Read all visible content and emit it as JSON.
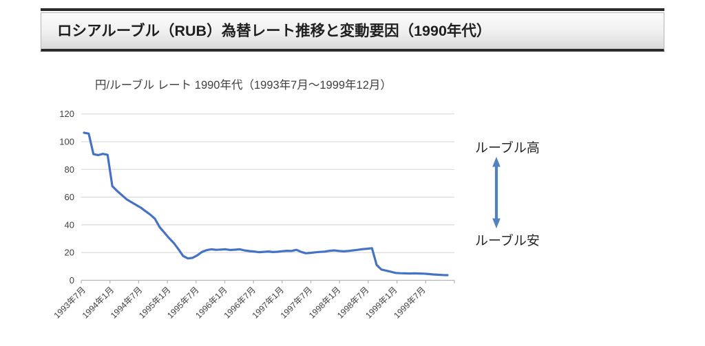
{
  "header": {
    "title": "ロシアルーブル（RUB）為替レート推移と変動要因（1990年代）"
  },
  "chart_data": {
    "type": "line",
    "title": "円/ルーブル レート 1990年代（1993年7月～1999年12月）",
    "series": [
      {
        "name": "円/ルーブル レート",
        "frequency": "monthly",
        "x_start": "1993年7月",
        "x_end": "1999年12月",
        "values": [
          106.5,
          105.8,
          91.0,
          90.3,
          91.2,
          90.5,
          68.0,
          64.5,
          61.5,
          58.5,
          56.5,
          54.5,
          52.5,
          50.0,
          47.5,
          44.5,
          38.5,
          34.5,
          30.5,
          27.0,
          22.5,
          17.5,
          15.8,
          16.2,
          18.0,
          20.5,
          21.8,
          22.4,
          22.0,
          22.2,
          22.4,
          21.9,
          22.1,
          22.4,
          21.6,
          21.1,
          20.8,
          20.3,
          20.5,
          20.8,
          20.4,
          20.6,
          21.0,
          21.3,
          21.2,
          22.0,
          20.5,
          19.5,
          19.8,
          20.2,
          20.5,
          20.7,
          21.3,
          21.6,
          21.2,
          20.9,
          21.2,
          21.6,
          22.0,
          22.5,
          22.8,
          23.2,
          11.0,
          7.8,
          7.0,
          6.2,
          5.3,
          5.1,
          5.0,
          4.9,
          5.0,
          4.9,
          4.8,
          4.5,
          4.2,
          4.0,
          3.8,
          3.7
        ]
      }
    ],
    "x_tick_labels": [
      "1993年7月",
      "1994年1月",
      "1994年7月",
      "1995年1月",
      "1995年7月",
      "1996年1月",
      "1996年7月",
      "1997年1月",
      "1997年7月",
      "1998年1月",
      "1998年7月",
      "1999年1月",
      "1999年7月"
    ],
    "x_tick_interval_months": 6,
    "y_ticks": [
      0,
      20,
      40,
      60,
      80,
      100,
      120
    ],
    "ylim": [
      0,
      120
    ],
    "xlabel": "",
    "ylabel": "",
    "grid": true,
    "legend_position": "none",
    "line_color": "#4472c4",
    "grid_color": "#d9d9d9",
    "axis_color": "#b3b3b3",
    "tick_label_color": "#404040"
  },
  "annotations": {
    "high_label": "ルーブル高",
    "low_label": "ルーブル安",
    "arrow_color": "#4f81bd"
  }
}
